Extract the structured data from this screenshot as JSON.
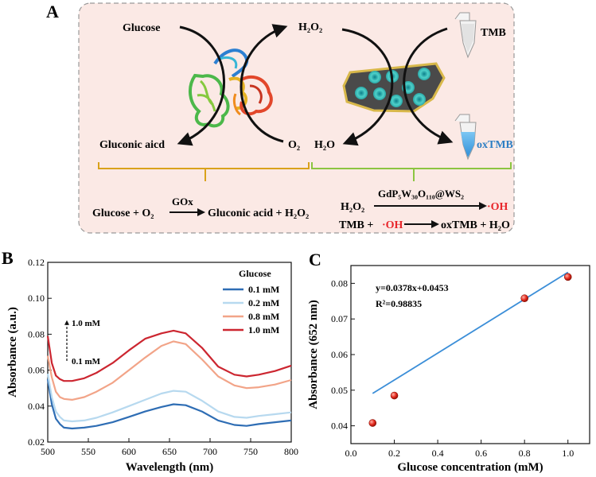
{
  "panel_a": {
    "label": "A",
    "glucose": "Glucose",
    "h2o2": "H₂O₂",
    "gluconic": "Gluconic aicd",
    "o2": "O₂",
    "h2o": "H₂O",
    "tmb": "TMB",
    "oxtmb": "oxTMB",
    "eq1_left": "Glucose + O₂",
    "eq1_enzyme": "GOx",
    "eq1_right": "Gluconic acid + H₂O₂",
    "eq2_left": "H₂O₂",
    "eq2_catalyst": "GdP₅W₃₀O₁₁₀@WS₂",
    "eq2_right": "·OH",
    "eq3_left_a": "TMB + ",
    "eq3_left_b": "·OH",
    "eq3_right": "oxTMB + H₂O",
    "colors": {
      "background": "#fbe8e4",
      "accent_red": "#e8262b",
      "bracket_left": "#d9a21b",
      "bracket_right": "#8cc540",
      "tube_blue": "#3f9fe0"
    }
  },
  "panel_b": {
    "label": "B"
  },
  "panel_c": {
    "label": "C"
  },
  "chart_data": [
    {
      "type": "line",
      "title": "",
      "xlabel": "Wavelength (nm)",
      "ylabel": "Absorbance (a.u.)",
      "xlim": [
        500,
        800
      ],
      "ylim": [
        0.02,
        0.12
      ],
      "xticks": [
        500,
        550,
        600,
        650,
        700,
        750,
        800
      ],
      "yticks": [
        0.02,
        0.04,
        0.06,
        0.08,
        0.1,
        0.12
      ],
      "legend_title": "Glucose",
      "legend_position": "top-right",
      "annotation_top": "1.0 mM",
      "annotation_bottom": "0.1 mM",
      "x": [
        500,
        505,
        510,
        515,
        520,
        530,
        545,
        560,
        580,
        600,
        620,
        640,
        655,
        670,
        690,
        710,
        730,
        745,
        760,
        780,
        800
      ],
      "series": [
        {
          "name": "0.1 mM",
          "color": "#2e6db4",
          "values": [
            0.055,
            0.041,
            0.033,
            0.03,
            0.028,
            0.0275,
            0.028,
            0.029,
            0.031,
            0.034,
            0.037,
            0.0395,
            0.041,
            0.0405,
            0.037,
            0.032,
            0.0295,
            0.029,
            0.03,
            0.031,
            0.032
          ]
        },
        {
          "name": "0.2 mM",
          "color": "#b7d9ef",
          "values": [
            0.058,
            0.045,
            0.037,
            0.034,
            0.032,
            0.0315,
            0.032,
            0.0335,
            0.0365,
            0.04,
            0.0435,
            0.047,
            0.0485,
            0.048,
            0.043,
            0.037,
            0.034,
            0.0335,
            0.0345,
            0.0355,
            0.0365
          ]
        },
        {
          "name": "0.8 mM",
          "color": "#f2a488",
          "values": [
            0.068,
            0.056,
            0.048,
            0.045,
            0.044,
            0.0435,
            0.045,
            0.048,
            0.053,
            0.06,
            0.067,
            0.0735,
            0.076,
            0.0745,
            0.066,
            0.0565,
            0.0515,
            0.05,
            0.0505,
            0.052,
            0.0545
          ]
        },
        {
          "name": "1.0 mM",
          "color": "#cc2630",
          "values": [
            0.079,
            0.064,
            0.057,
            0.055,
            0.054,
            0.054,
            0.0555,
            0.0585,
            0.064,
            0.071,
            0.0775,
            0.0805,
            0.082,
            0.0805,
            0.0725,
            0.062,
            0.0575,
            0.0565,
            0.0575,
            0.0595,
            0.0625
          ]
        }
      ]
    },
    {
      "type": "scatter",
      "title": "",
      "xlabel": "Glucose concentration (mM)",
      "ylabel": "Absorbance (652 nm)",
      "xlim": [
        0.0,
        1.1
      ],
      "ylim": [
        0.035,
        0.085
      ],
      "xticks": [
        0.0,
        0.2,
        0.4,
        0.6,
        0.8,
        1.0
      ],
      "yticks": [
        0.04,
        0.05,
        0.06,
        0.07,
        0.08
      ],
      "equation": "y=0.0378x+0.0453",
      "r2": "R²=0.98835",
      "points": [
        {
          "x": 0.1,
          "y": 0.0408
        },
        {
          "x": 0.2,
          "y": 0.0485
        },
        {
          "x": 0.8,
          "y": 0.0758
        },
        {
          "x": 1.0,
          "y": 0.0818
        }
      ],
      "fit": {
        "slope": 0.0378,
        "intercept": 0.0453,
        "x_range": [
          0.1,
          1.0
        ],
        "color": "#3b8ed8"
      },
      "point_color": "#e02b20"
    }
  ]
}
